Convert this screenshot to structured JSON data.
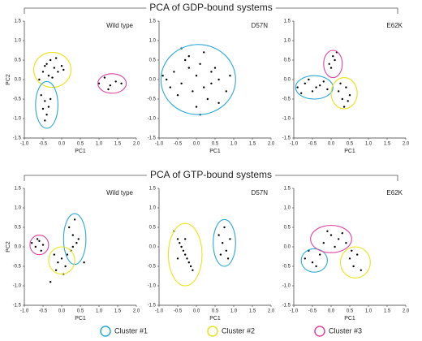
{
  "groups": [
    "PCA of GDP-bound systems",
    "PCA of GTP-bound systems"
  ],
  "legend": [
    {
      "name": "Cluster #1",
      "color": "#2aa8d6"
    },
    {
      "name": "Cluster #2",
      "color": "#ece31a"
    },
    {
      "name": "Cluster #3",
      "color": "#e0449f"
    }
  ],
  "chart_data": [
    {
      "type": "scatter",
      "title": "Wild type",
      "xlabel": "PC1",
      "ylabel": "PC2",
      "color": "#000000",
      "x": [
        -0.5,
        -0.4,
        -0.3,
        -0.2,
        -0.1,
        0.0,
        -0.6,
        -0.35,
        -0.15,
        0.05,
        -0.25,
        -0.45,
        -0.55,
        -0.45,
        -0.35,
        -0.4,
        -0.5,
        -0.3,
        -0.45,
        1.0,
        1.15,
        1.3,
        1.45,
        1.6,
        1.25
      ],
      "y": [
        0.2,
        0.4,
        0.5,
        0.3,
        0.2,
        0.35,
        0.0,
        0.1,
        0.55,
        0.25,
        0.05,
        0.35,
        -0.4,
        -0.55,
        -0.7,
        -0.9,
        -0.75,
        -0.5,
        -1.05,
        -0.1,
        0.05,
        -0.15,
        -0.05,
        -0.1,
        -0.25
      ],
      "ellipses": [
        {
          "cx": -0.25,
          "cy": 0.25,
          "rx": 0.5,
          "ry": 0.45,
          "color": "#ece31a"
        },
        {
          "cx": -0.4,
          "cy": -0.65,
          "rx": 0.3,
          "ry": 0.6,
          "color": "#2aa8d6"
        },
        {
          "cx": 1.35,
          "cy": -0.1,
          "rx": 0.38,
          "ry": 0.25,
          "color": "#e0449f"
        }
      ],
      "xlim": [
        -1,
        2
      ],
      "ylim": [
        -1.5,
        1.5
      ],
      "xticks": [
        {
          "value": -1,
          "label": "-1.0"
        },
        {
          "value": -0.5,
          "label": "-0.5"
        },
        {
          "value": 0,
          "label": "0.0"
        },
        {
          "value": 0.5,
          "label": "0.5"
        },
        {
          "value": 1,
          "label": "1.0"
        },
        {
          "value": 1.5,
          "label": "1.5"
        },
        {
          "value": 2,
          "label": "2.0"
        }
      ],
      "yticks": [
        {
          "value": -1.5,
          "label": "-1.5"
        },
        {
          "value": -1,
          "label": "-1.0"
        },
        {
          "value": -0.5,
          "label": "-0.5"
        },
        {
          "value": 0,
          "label": "0.0"
        },
        {
          "value": 0.5,
          "label": "0.5"
        },
        {
          "value": 1,
          "label": "1.0"
        },
        {
          "value": 1.5,
          "label": "1.5"
        }
      ]
    },
    {
      "type": "scatter",
      "title": "D57N",
      "xlabel": "PC1",
      "color": "#000000",
      "x": [
        -0.8,
        -0.6,
        -0.4,
        -0.2,
        0.0,
        0.2,
        0.4,
        0.6,
        0.8,
        -0.5,
        -0.3,
        -0.1,
        0.1,
        0.3,
        0.5,
        -0.7,
        0.0,
        0.2,
        -0.2,
        0.4,
        0.9,
        -0.9,
        0.1,
        -0.4,
        0.6
      ],
      "y": [
        0.0,
        0.2,
        -0.1,
        0.3,
        0.1,
        -0.2,
        0.2,
        0.0,
        -0.3,
        -0.4,
        0.5,
        -0.3,
        0.4,
        -0.5,
        0.3,
        -0.2,
        -0.7,
        0.7,
        0.6,
        -0.1,
        0.1,
        0.1,
        -0.9,
        0.8,
        -0.6
      ],
      "ellipses": [
        {
          "cx": 0.05,
          "cy": 0.0,
          "rx": 1.0,
          "ry": 0.9,
          "color": "#2aa8d6"
        }
      ],
      "xlim": [
        -1,
        2
      ],
      "ylim": [
        -1.5,
        1.5
      ],
      "xticks": [
        {
          "value": -1,
          "label": "-1.0"
        },
        {
          "value": -0.5,
          "label": "-0.5"
        },
        {
          "value": 0,
          "label": "0.0"
        },
        {
          "value": 0.5,
          "label": "0.5"
        },
        {
          "value": 1,
          "label": "1.0"
        },
        {
          "value": 1.5,
          "label": "1.5"
        },
        {
          "value": 2,
          "label": "2.0"
        }
      ],
      "yticks": [
        {
          "value": -1.5,
          "label": "-1.5"
        },
        {
          "value": -1,
          "label": "-1.0"
        },
        {
          "value": -0.5,
          "label": "-0.5"
        },
        {
          "value": 0,
          "label": "0.0"
        },
        {
          "value": 0.5,
          "label": "0.5"
        },
        {
          "value": 1,
          "label": "1.0"
        },
        {
          "value": 1.5,
          "label": "1.5"
        }
      ]
    },
    {
      "type": "scatter",
      "title": "E62K",
      "xlabel": "PC1",
      "color": "#000000",
      "x": [
        -0.9,
        -0.7,
        -0.5,
        -0.3,
        -0.1,
        -0.8,
        -0.6,
        -0.4,
        -0.2,
        0.0,
        0.1,
        0.15,
        0.05,
        -0.05,
        0.2,
        0.3,
        0.4,
        0.5,
        0.35,
        0.25,
        0.45
      ],
      "y": [
        -0.2,
        -0.1,
        -0.3,
        -0.15,
        -0.25,
        -0.35,
        0.0,
        -0.2,
        -0.05,
        0.3,
        0.5,
        0.7,
        0.6,
        0.4,
        -0.3,
        -0.5,
        -0.2,
        -0.4,
        -0.7,
        -0.1,
        -0.55
      ],
      "ellipses": [
        {
          "cx": -0.45,
          "cy": -0.2,
          "rx": 0.5,
          "ry": 0.3,
          "color": "#2aa8d6"
        },
        {
          "cx": 0.35,
          "cy": -0.35,
          "rx": 0.35,
          "ry": 0.4,
          "color": "#ece31a"
        },
        {
          "cx": 0.05,
          "cy": 0.4,
          "rx": 0.25,
          "ry": 0.35,
          "color": "#e0449f"
        }
      ],
      "xlim": [
        -1,
        2
      ],
      "ylim": [
        -1.5,
        1.5
      ],
      "xticks": [
        {
          "value": -1,
          "label": "-1.0"
        },
        {
          "value": -0.5,
          "label": "-0.5"
        },
        {
          "value": 0,
          "label": "0.0"
        },
        {
          "value": 0.5,
          "label": "0.5"
        },
        {
          "value": 1,
          "label": "1.0"
        },
        {
          "value": 1.5,
          "label": "1.5"
        },
        {
          "value": 2,
          "label": "2.0"
        }
      ],
      "yticks": [
        {
          "value": -1.5,
          "label": "-1.5"
        },
        {
          "value": -1,
          "label": "-1.0"
        },
        {
          "value": -0.5,
          "label": "-0.5"
        },
        {
          "value": 0,
          "label": "0.0"
        },
        {
          "value": 0.5,
          "label": "0.5"
        },
        {
          "value": 1,
          "label": "1.0"
        },
        {
          "value": 1.5,
          "label": "1.5"
        }
      ]
    },
    {
      "type": "scatter",
      "title": "Wild type",
      "xlabel": "PC1",
      "ylabel": "PC2",
      "color": "#000000",
      "x": [
        -0.8,
        -0.7,
        -0.6,
        -0.5,
        -0.55,
        -0.65,
        0.2,
        0.3,
        0.4,
        0.35,
        0.25,
        0.45,
        0.3,
        -0.2,
        -0.1,
        0.0,
        0.1,
        0.15,
        -0.15,
        0.05,
        -0.3,
        0.6
      ],
      "y": [
        0.1,
        0.0,
        0.15,
        0.05,
        -0.1,
        0.2,
        0.5,
        0.3,
        0.1,
        0.7,
        -0.1,
        0.2,
        0.0,
        -0.2,
        -0.4,
        -0.3,
        -0.5,
        -0.2,
        -0.6,
        -0.7,
        -0.9,
        -0.4
      ],
      "ellipses": [
        {
          "cx": 0.35,
          "cy": 0.2,
          "rx": 0.3,
          "ry": 0.65,
          "color": "#2aa8d6"
        },
        {
          "cx": 0.0,
          "cy": -0.35,
          "rx": 0.35,
          "ry": 0.35,
          "color": "#ece31a"
        },
        {
          "cx": -0.6,
          "cy": 0.05,
          "rx": 0.25,
          "ry": 0.25,
          "color": "#e0449f"
        }
      ],
      "xlim": [
        -1,
        2
      ],
      "ylim": [
        -1.5,
        1.5
      ],
      "xticks": [
        {
          "value": -1,
          "label": "-1.0"
        },
        {
          "value": -0.5,
          "label": "-0.5"
        },
        {
          "value": 0,
          "label": "0.0"
        },
        {
          "value": 0.5,
          "label": "0.5"
        },
        {
          "value": 1,
          "label": "1.0"
        },
        {
          "value": 1.5,
          "label": "1.5"
        },
        {
          "value": 2,
          "label": "2.0"
        }
      ],
      "yticks": [
        {
          "value": -1.5,
          "label": "-1.5"
        },
        {
          "value": -1,
          "label": "-1.0"
        },
        {
          "value": -0.5,
          "label": "-0.5"
        },
        {
          "value": 0,
          "label": "0.0"
        },
        {
          "value": 0.5,
          "label": "0.5"
        },
        {
          "value": 1,
          "label": "1.0"
        },
        {
          "value": 1.5,
          "label": "1.5"
        }
      ]
    },
    {
      "type": "scatter",
      "title": "D57N",
      "xlabel": "PC1",
      "color": "#000000",
      "x": [
        -0.6,
        -0.5,
        -0.4,
        -0.3,
        -0.2,
        -0.1,
        -0.45,
        -0.35,
        -0.25,
        -0.15,
        -0.5,
        -0.3,
        0.6,
        0.7,
        0.8,
        0.9,
        0.75,
        0.65,
        0.85
      ],
      "y": [
        0.4,
        0.2,
        0.0,
        -0.2,
        -0.4,
        -0.6,
        0.1,
        -0.1,
        -0.3,
        -0.5,
        -0.3,
        0.2,
        0.3,
        0.1,
        -0.1,
        0.2,
        0.5,
        -0.2,
        -0.3
      ],
      "ellipses": [
        {
          "cx": 0.75,
          "cy": 0.1,
          "rx": 0.3,
          "ry": 0.6,
          "color": "#2aa8d6"
        },
        {
          "cx": -0.3,
          "cy": -0.2,
          "rx": 0.45,
          "ry": 0.8,
          "color": "#ece31a"
        }
      ],
      "xlim": [
        -1,
        2
      ],
      "ylim": [
        -1.5,
        1.5
      ],
      "xticks": [
        {
          "value": -1,
          "label": "-1.0"
        },
        {
          "value": -0.5,
          "label": "-0.5"
        },
        {
          "value": 0,
          "label": "0.0"
        },
        {
          "value": 0.5,
          "label": "0.5"
        },
        {
          "value": 1,
          "label": "1.0"
        },
        {
          "value": 1.5,
          "label": "1.5"
        },
        {
          "value": 2,
          "label": "2.0"
        }
      ],
      "yticks": [
        {
          "value": -1.5,
          "label": "-1.5"
        },
        {
          "value": -1,
          "label": "-1.0"
        },
        {
          "value": -0.5,
          "label": "-0.5"
        },
        {
          "value": 0,
          "label": "0.0"
        },
        {
          "value": 0.5,
          "label": "0.5"
        },
        {
          "value": 1,
          "label": "1.0"
        },
        {
          "value": 1.5,
          "label": "1.5"
        }
      ]
    },
    {
      "type": "scatter",
      "title": "E62K",
      "xlabel": "PC1",
      "color": "#000000",
      "x": [
        -0.7,
        -0.5,
        -0.3,
        -0.4,
        -0.6,
        -0.2,
        0.0,
        0.2,
        0.4,
        -0.1,
        0.1,
        0.3,
        0.5,
        0.6,
        0.7,
        0.8,
        0.55
      ],
      "y": [
        -0.3,
        -0.4,
        -0.2,
        -0.5,
        -0.1,
        0.1,
        0.3,
        0.2,
        0.1,
        0.4,
        0.0,
        0.35,
        -0.3,
        -0.5,
        -0.2,
        -0.6,
        -0.1
      ],
      "ellipses": [
        {
          "cx": -0.45,
          "cy": -0.35,
          "rx": 0.35,
          "ry": 0.3,
          "color": "#2aa8d6"
        },
        {
          "cx": 0.65,
          "cy": -0.4,
          "rx": 0.4,
          "ry": 0.4,
          "color": "#ece31a"
        },
        {
          "cx": 0.0,
          "cy": 0.2,
          "rx": 0.55,
          "ry": 0.35,
          "color": "#e0449f"
        }
      ],
      "xlim": [
        -1,
        2
      ],
      "ylim": [
        -1.5,
        1.5
      ],
      "xticks": [
        {
          "value": -1,
          "label": "-1.0"
        },
        {
          "value": -0.5,
          "label": "-0.5"
        },
        {
          "value": 0,
          "label": "0.0"
        },
        {
          "value": 0.5,
          "label": "0.5"
        },
        {
          "value": 1,
          "label": "1.0"
        },
        {
          "value": 1.5,
          "label": "1.5"
        },
        {
          "value": 2,
          "label": "2.0"
        }
      ],
      "yticks": [
        {
          "value": -1.5,
          "label": "-1.5"
        },
        {
          "value": -1,
          "label": "-1.0"
        },
        {
          "value": -0.5,
          "label": "-0.5"
        },
        {
          "value": 0,
          "label": "0.0"
        },
        {
          "value": 0.5,
          "label": "0.5"
        },
        {
          "value": 1,
          "label": "1.0"
        },
        {
          "value": 1.5,
          "label": "1.5"
        }
      ]
    }
  ]
}
